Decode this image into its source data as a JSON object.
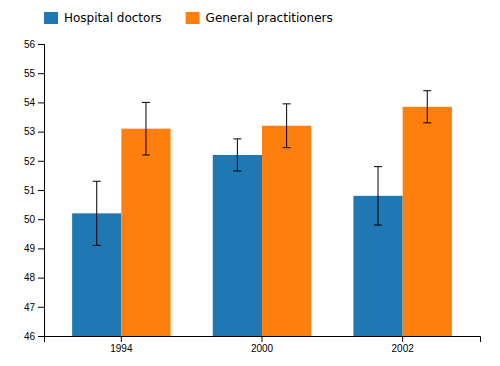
{
  "chart_data": {
    "type": "bar",
    "categories": [
      "1994",
      "2000",
      "2002"
    ],
    "series": [
      {
        "name": "Hospital doctors",
        "values": [
          50.2,
          52.2,
          50.8
        ],
        "errors": [
          1.1,
          0.55,
          1.0
        ]
      },
      {
        "name": "General practitioners",
        "values": [
          53.1,
          53.2,
          53.85
        ],
        "errors": [
          0.9,
          0.75,
          0.55
        ]
      }
    ],
    "ylim": [
      46,
      56
    ],
    "yticks": [
      46,
      47,
      48,
      49,
      50,
      51,
      52,
      53,
      54,
      55,
      56
    ],
    "grid": false,
    "legend": "upper left"
  }
}
